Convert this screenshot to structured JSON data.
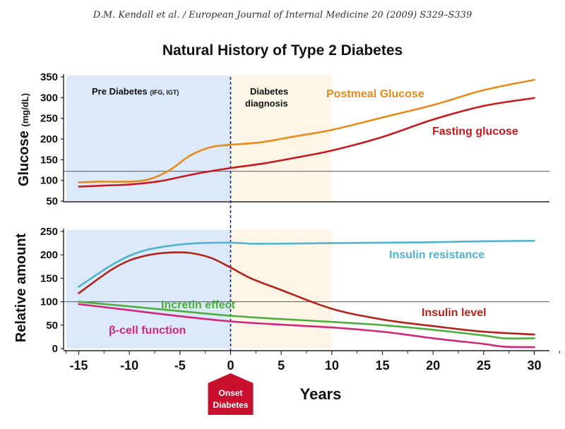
{
  "header": "D.M. Kendall et al. / European Journal of Internal Medicine 20 (2009) S329–S339",
  "chart_title": "Natural History of Type 2 Diabetes",
  "x_axis": {
    "label": "Years",
    "ticks": [
      "-15",
      "-10",
      "-5",
      "0",
      "5",
      "10",
      "15",
      "20",
      "25",
      "30"
    ],
    "range": [
      -16.5,
      31.5
    ]
  },
  "onset_marker": {
    "lines": [
      "Onset",
      "Diabetes"
    ],
    "x": 0,
    "color": "#c8102e"
  },
  "regions": {
    "pre_diabetes_label": "Pre Diabetes",
    "pre_diabetes_sublabel": "(IFG, IGT)",
    "diagnosis_label_line1": "Diabetes",
    "diagnosis_label_line2": "diagnosis",
    "pre_color": "#dce9f8",
    "post_color": "#fdf6e6"
  },
  "colors": {
    "postmeal": "#e8891a",
    "fasting": "#c8191f",
    "insulin_resistance": "#4fb3cf",
    "insulin_level": "#b5221a",
    "incretin": "#4cae3b",
    "beta_cell": "#d2287c"
  },
  "chart_data": [
    {
      "type": "line",
      "ylabel": "Glucose",
      "ylabel_unit": "(mg/dL)",
      "ylim": [
        50,
        350
      ],
      "yticks": [
        "350",
        "300",
        "250",
        "200",
        "150",
        "100",
        "50"
      ],
      "reference_line": 122,
      "series": [
        {
          "name": "Postmeal Glucose",
          "color_key": "postmeal",
          "x": [
            -15,
            -13,
            -10,
            -8,
            -6,
            -4,
            -2,
            0,
            3,
            6,
            10,
            15,
            20,
            25,
            30
          ],
          "y": [
            95,
            97,
            97,
            103,
            125,
            160,
            180,
            186,
            192,
            205,
            222,
            252,
            282,
            318,
            343
          ]
        },
        {
          "name": "Fasting glucose",
          "color_key": "fasting",
          "x": [
            -15,
            -12,
            -10,
            -7,
            -5,
            -3,
            0,
            3,
            6,
            10,
            15,
            20,
            25,
            30
          ],
          "y": [
            85,
            88,
            90,
            98,
            108,
            118,
            130,
            140,
            153,
            172,
            205,
            247,
            280,
            299
          ]
        }
      ]
    },
    {
      "type": "line",
      "ylabel": "Relative amount",
      "ylim": [
        0,
        250
      ],
      "yticks": [
        "250",
        "200",
        "150",
        "100",
        "50",
        "0"
      ],
      "reference_line": 100,
      "series": [
        {
          "name": "Insulin resistance",
          "color_key": "insulin_resistance",
          "x": [
            -15,
            -12,
            -10,
            -8,
            -5,
            -3,
            0,
            2,
            5,
            10,
            15,
            20,
            25,
            30
          ],
          "y": [
            132,
            175,
            198,
            212,
            222,
            225,
            226,
            224,
            224,
            225,
            226,
            227,
            229,
            230
          ]
        },
        {
          "name": "Insulin level",
          "color_key": "insulin_level",
          "x": [
            -15,
            -12,
            -10,
            -8,
            -6,
            -4,
            -2,
            0,
            2,
            5,
            10,
            15,
            20,
            25,
            30
          ],
          "y": [
            118,
            165,
            188,
            200,
            205,
            204,
            194,
            173,
            150,
            125,
            85,
            62,
            48,
            36,
            30
          ]
        },
        {
          "name": "Incretin effect",
          "color_key": "incretin",
          "x": [
            -15,
            -10,
            -5,
            0,
            5,
            10,
            15,
            20,
            25,
            27,
            30
          ],
          "y": [
            100,
            90,
            80,
            70,
            63,
            57,
            50,
            40,
            28,
            22,
            22
          ]
        },
        {
          "name": "β-cell function",
          "color_key": "beta_cell",
          "x": [
            -15,
            -10,
            -5,
            0,
            5,
            10,
            15,
            20,
            25,
            27,
            30
          ],
          "y": [
            95,
            82,
            69,
            58,
            51,
            45,
            36,
            22,
            10,
            4,
            3
          ]
        }
      ]
    }
  ]
}
